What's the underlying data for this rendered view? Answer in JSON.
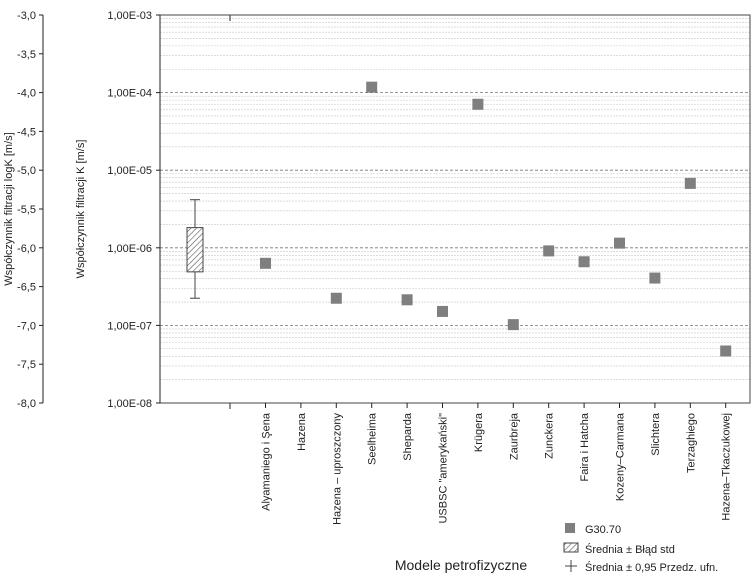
{
  "chart_data": {
    "type": "scatter",
    "xlabel": "Modele petrofizyczne",
    "ylabel_left": "Współczynnik filtracji logK [m/s]",
    "ylabel_right": "Współczynnik filtracji K [m/s]",
    "left_axis": {
      "ylim": [
        -8.0,
        -3.0
      ],
      "ticks": [
        "-3,0",
        "-3,5",
        "-4,0",
        "-4,5",
        "-5,0",
        "-5,5",
        "-6,0",
        "-6,5",
        "-7,0",
        "-7,5",
        "-8,0"
      ],
      "tick_values": [
        -3.0,
        -3.5,
        -4.0,
        -4.5,
        -5.0,
        -5.5,
        -6.0,
        -6.5,
        -7.0,
        -7.5,
        -8.0
      ]
    },
    "right_axis": {
      "scale": "log",
      "ylim": [
        1e-08,
        0.001
      ],
      "ticks": [
        "1,00E-03",
        "1,00E-04",
        "1,00E-05",
        "1,00E-06",
        "1,00E-07",
        "1,00E-08"
      ],
      "tick_values": [
        0.001,
        0.0001,
        1e-05,
        1e-06,
        1e-07,
        1e-08
      ]
    },
    "grid": true,
    "categories": [
      "Alyamaniego i Şena",
      "Hazena",
      "Hazena – uproszczony",
      "Seelheima",
      "Sheparda",
      "USBSC \"amerykański\"",
      "Krügera",
      "Zaurbreja",
      "Zunckera",
      "Faira i Hatcha",
      "Kozeny–Carmana",
      "Slichtera",
      "Terzaghiego",
      "Hazena–Tkaczukowej"
    ],
    "series": [
      {
        "name": "G30.70",
        "color": "#7f7f7f",
        "log_values": [
          -6.2,
          null,
          -6.65,
          -3.93,
          -6.67,
          -6.82,
          -4.15,
          -6.99,
          -6.04,
          -6.18,
          -5.94,
          -6.39,
          -5.17,
          -7.33
        ]
      }
    ],
    "box": {
      "mean": -6.04,
      "se_low": -6.31,
      "se_high": -5.74,
      "pi_low": -6.65,
      "pi_high": -5.38
    },
    "legend": {
      "position": "bottom-right",
      "items": [
        {
          "label": "G30.70",
          "symbol": "square"
        },
        {
          "label": "Średnia ± Błąd std",
          "symbol": "hatched-box"
        },
        {
          "label": "Średnia ± 0,95 Przedz. ufn.",
          "symbol": "whisker"
        }
      ]
    }
  }
}
